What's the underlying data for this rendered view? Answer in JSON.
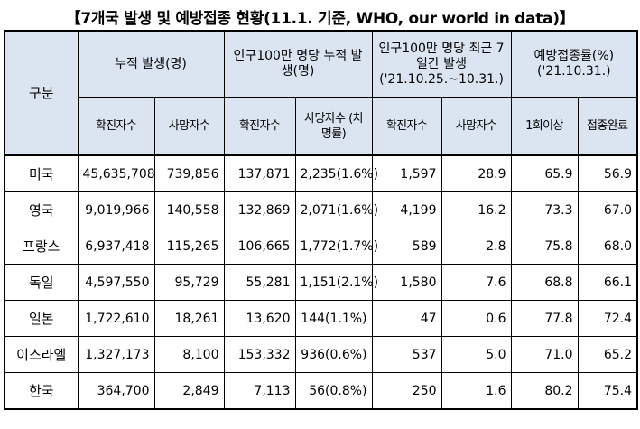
{
  "title": "【7개국 발생 및 예방접종 현황(11.1. 기준, WHO, our world in data)】",
  "header": {
    "gubun": "구분",
    "groups": [
      "누적 발생(명)",
      "인구100만 명당 누적 발생(명)",
      "인구100만 명당 최근 7일간 발생 ('21.10.25.~10.31.)",
      "예방접종률(%) ('21.10.31.)"
    ],
    "sub": [
      "확진자수",
      "사망자수",
      "확진자수",
      "사망자수 (치명률)",
      "확진자수",
      "사망자수",
      "1회이상",
      "접종완료"
    ]
  },
  "rows": [
    {
      "country": "미국",
      "cells": [
        "45,635,708",
        "739,856",
        "137,871",
        "2,235(1.6%)",
        "1,597",
        "28.9",
        "65.9",
        "56.9"
      ]
    },
    {
      "country": "영국",
      "cells": [
        "9,019,966",
        "140,558",
        "132,869",
        "2,071(1.6%)",
        "4,199",
        "16.2",
        "73.3",
        "67.0"
      ]
    },
    {
      "country": "프랑스",
      "cells": [
        "6,937,418",
        "115,265",
        "106,665",
        "1,772(1.7%)",
        "589",
        "2.8",
        "75.8",
        "68.0"
      ]
    },
    {
      "country": "독일",
      "cells": [
        "4,597,550",
        "95,729",
        "55,281",
        "1,151(2.1%)",
        "1,580",
        "7.6",
        "68.8",
        "66.1"
      ]
    },
    {
      "country": "일본",
      "cells": [
        "1,722,610",
        "18,261",
        "13,620",
        "144(1.1%)",
        "47",
        "0.6",
        "77.8",
        "72.4"
      ]
    },
    {
      "country": "이스라엘",
      "cells": [
        "1,327,173",
        "8,100",
        "153,332",
        "936(0.6%)",
        "537",
        "5.0",
        "71.0",
        "65.2"
      ]
    },
    {
      "country": "한국",
      "cells": [
        "364,700",
        "2,849",
        "7,113",
        "56(0.8%)",
        "250",
        "1.6",
        "80.2",
        "75.4"
      ]
    }
  ]
}
